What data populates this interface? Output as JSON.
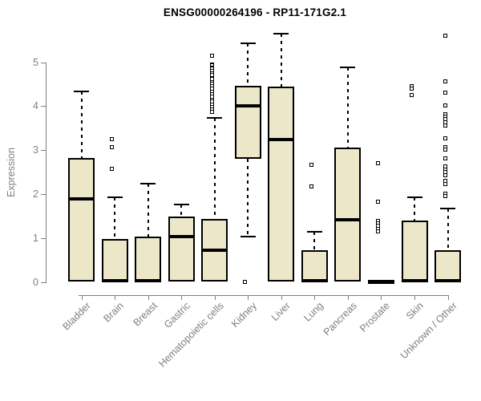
{
  "figure": {
    "title": "ENSG00000264196 - RP11-171G2.1"
  },
  "chart_data": {
    "type": "boxplot",
    "title": "ENSG00000264196 - RP11-171G2.1",
    "xlabel": "",
    "ylabel": "Expression",
    "ylim": [
      0,
      5.8
    ],
    "yticks": [
      0,
      1,
      2,
      3,
      4,
      5
    ],
    "grid": false,
    "legend": "none",
    "categories": [
      "Bladder",
      "Brain",
      "Breast",
      "Gastric",
      "Hematopoietic cells",
      "Kidney",
      "Liver",
      "Lung",
      "Pancreas",
      "Prostate",
      "Skin",
      "Unknown / Other"
    ],
    "series": [
      {
        "name": "Bladder",
        "whisker_low": 0,
        "q1": 0.02,
        "median": 1.9,
        "q3": 2.82,
        "whisker_high": 4.33,
        "outliers": []
      },
      {
        "name": "Brain",
        "whisker_low": 0,
        "q1": 0.02,
        "median": 0.04,
        "q3": 0.98,
        "whisker_high": 1.93,
        "outliers": [
          3.25,
          3.08,
          2.58
        ]
      },
      {
        "name": "Breast",
        "whisker_low": 0,
        "q1": 0.02,
        "median": 0.04,
        "q3": 1.05,
        "whisker_high": 2.25,
        "outliers": []
      },
      {
        "name": "Gastric",
        "whisker_low": 0,
        "q1": 0.02,
        "median": 1.04,
        "q3": 1.5,
        "whisker_high": 1.77,
        "outliers": []
      },
      {
        "name": "Hematopoietic cells",
        "whisker_low": 0,
        "q1": 0.02,
        "median": 0.74,
        "q3": 1.45,
        "whisker_high": 3.73,
        "outliers": [
          5.15,
          4.95,
          4.92,
          4.88,
          4.85,
          4.8,
          4.75,
          4.7,
          4.62,
          4.55,
          4.5,
          4.45,
          4.4,
          4.33,
          4.28,
          4.22,
          4.15,
          4.1,
          4.03,
          3.98,
          3.92,
          3.87
        ]
      },
      {
        "name": "Kidney",
        "whisker_low": 1.05,
        "q1": 2.8,
        "median": 4.0,
        "q3": 4.47,
        "whisker_high": 5.43,
        "outliers": [
          0.02
        ]
      },
      {
        "name": "Liver",
        "whisker_low": 0,
        "q1": 0.02,
        "median": 3.25,
        "q3": 4.45,
        "whisker_high": 5.65,
        "outliers": []
      },
      {
        "name": "Lung",
        "whisker_low": 0,
        "q1": 0.02,
        "median": 0.04,
        "q3": 0.73,
        "whisker_high": 1.15,
        "outliers": [
          2.68,
          2.18
        ]
      },
      {
        "name": "Pancreas",
        "whisker_low": 0,
        "q1": 0.02,
        "median": 1.42,
        "q3": 3.06,
        "whisker_high": 4.88,
        "outliers": []
      },
      {
        "name": "Prostate",
        "whisker_low": 0,
        "q1": 0.01,
        "median": 0.02,
        "q3": 0.04,
        "whisker_high": 0.05,
        "outliers": [
          2.7,
          1.84,
          1.4,
          1.34,
          1.28,
          1.22,
          1.16
        ]
      },
      {
        "name": "Skin",
        "whisker_low": 0,
        "q1": 0.02,
        "median": 0.04,
        "q3": 1.4,
        "whisker_high": 1.93,
        "outliers": [
          4.45,
          4.4,
          4.25
        ]
      },
      {
        "name": "Unknown / Other",
        "whisker_low": 0,
        "q1": 0.02,
        "median": 0.04,
        "q3": 0.73,
        "whisker_high": 1.68,
        "outliers": [
          5.6,
          4.56,
          4.3,
          4.02,
          3.82,
          3.76,
          3.7,
          3.64,
          3.56,
          3.27,
          3.08,
          3.02,
          2.82,
          2.64,
          2.56,
          2.5,
          2.44,
          2.3,
          2.24,
          2.02,
          1.96
        ]
      }
    ],
    "colors": {
      "box_fill": "#ede7c9",
      "box_border": "#000000",
      "median": "#000000",
      "whisker": "#000000",
      "outlier_fill": "#ffffff",
      "axis": "#7f7f7f",
      "tick_label": "#7f7f7f",
      "title": "#000000",
      "background": "#ffffff"
    }
  }
}
